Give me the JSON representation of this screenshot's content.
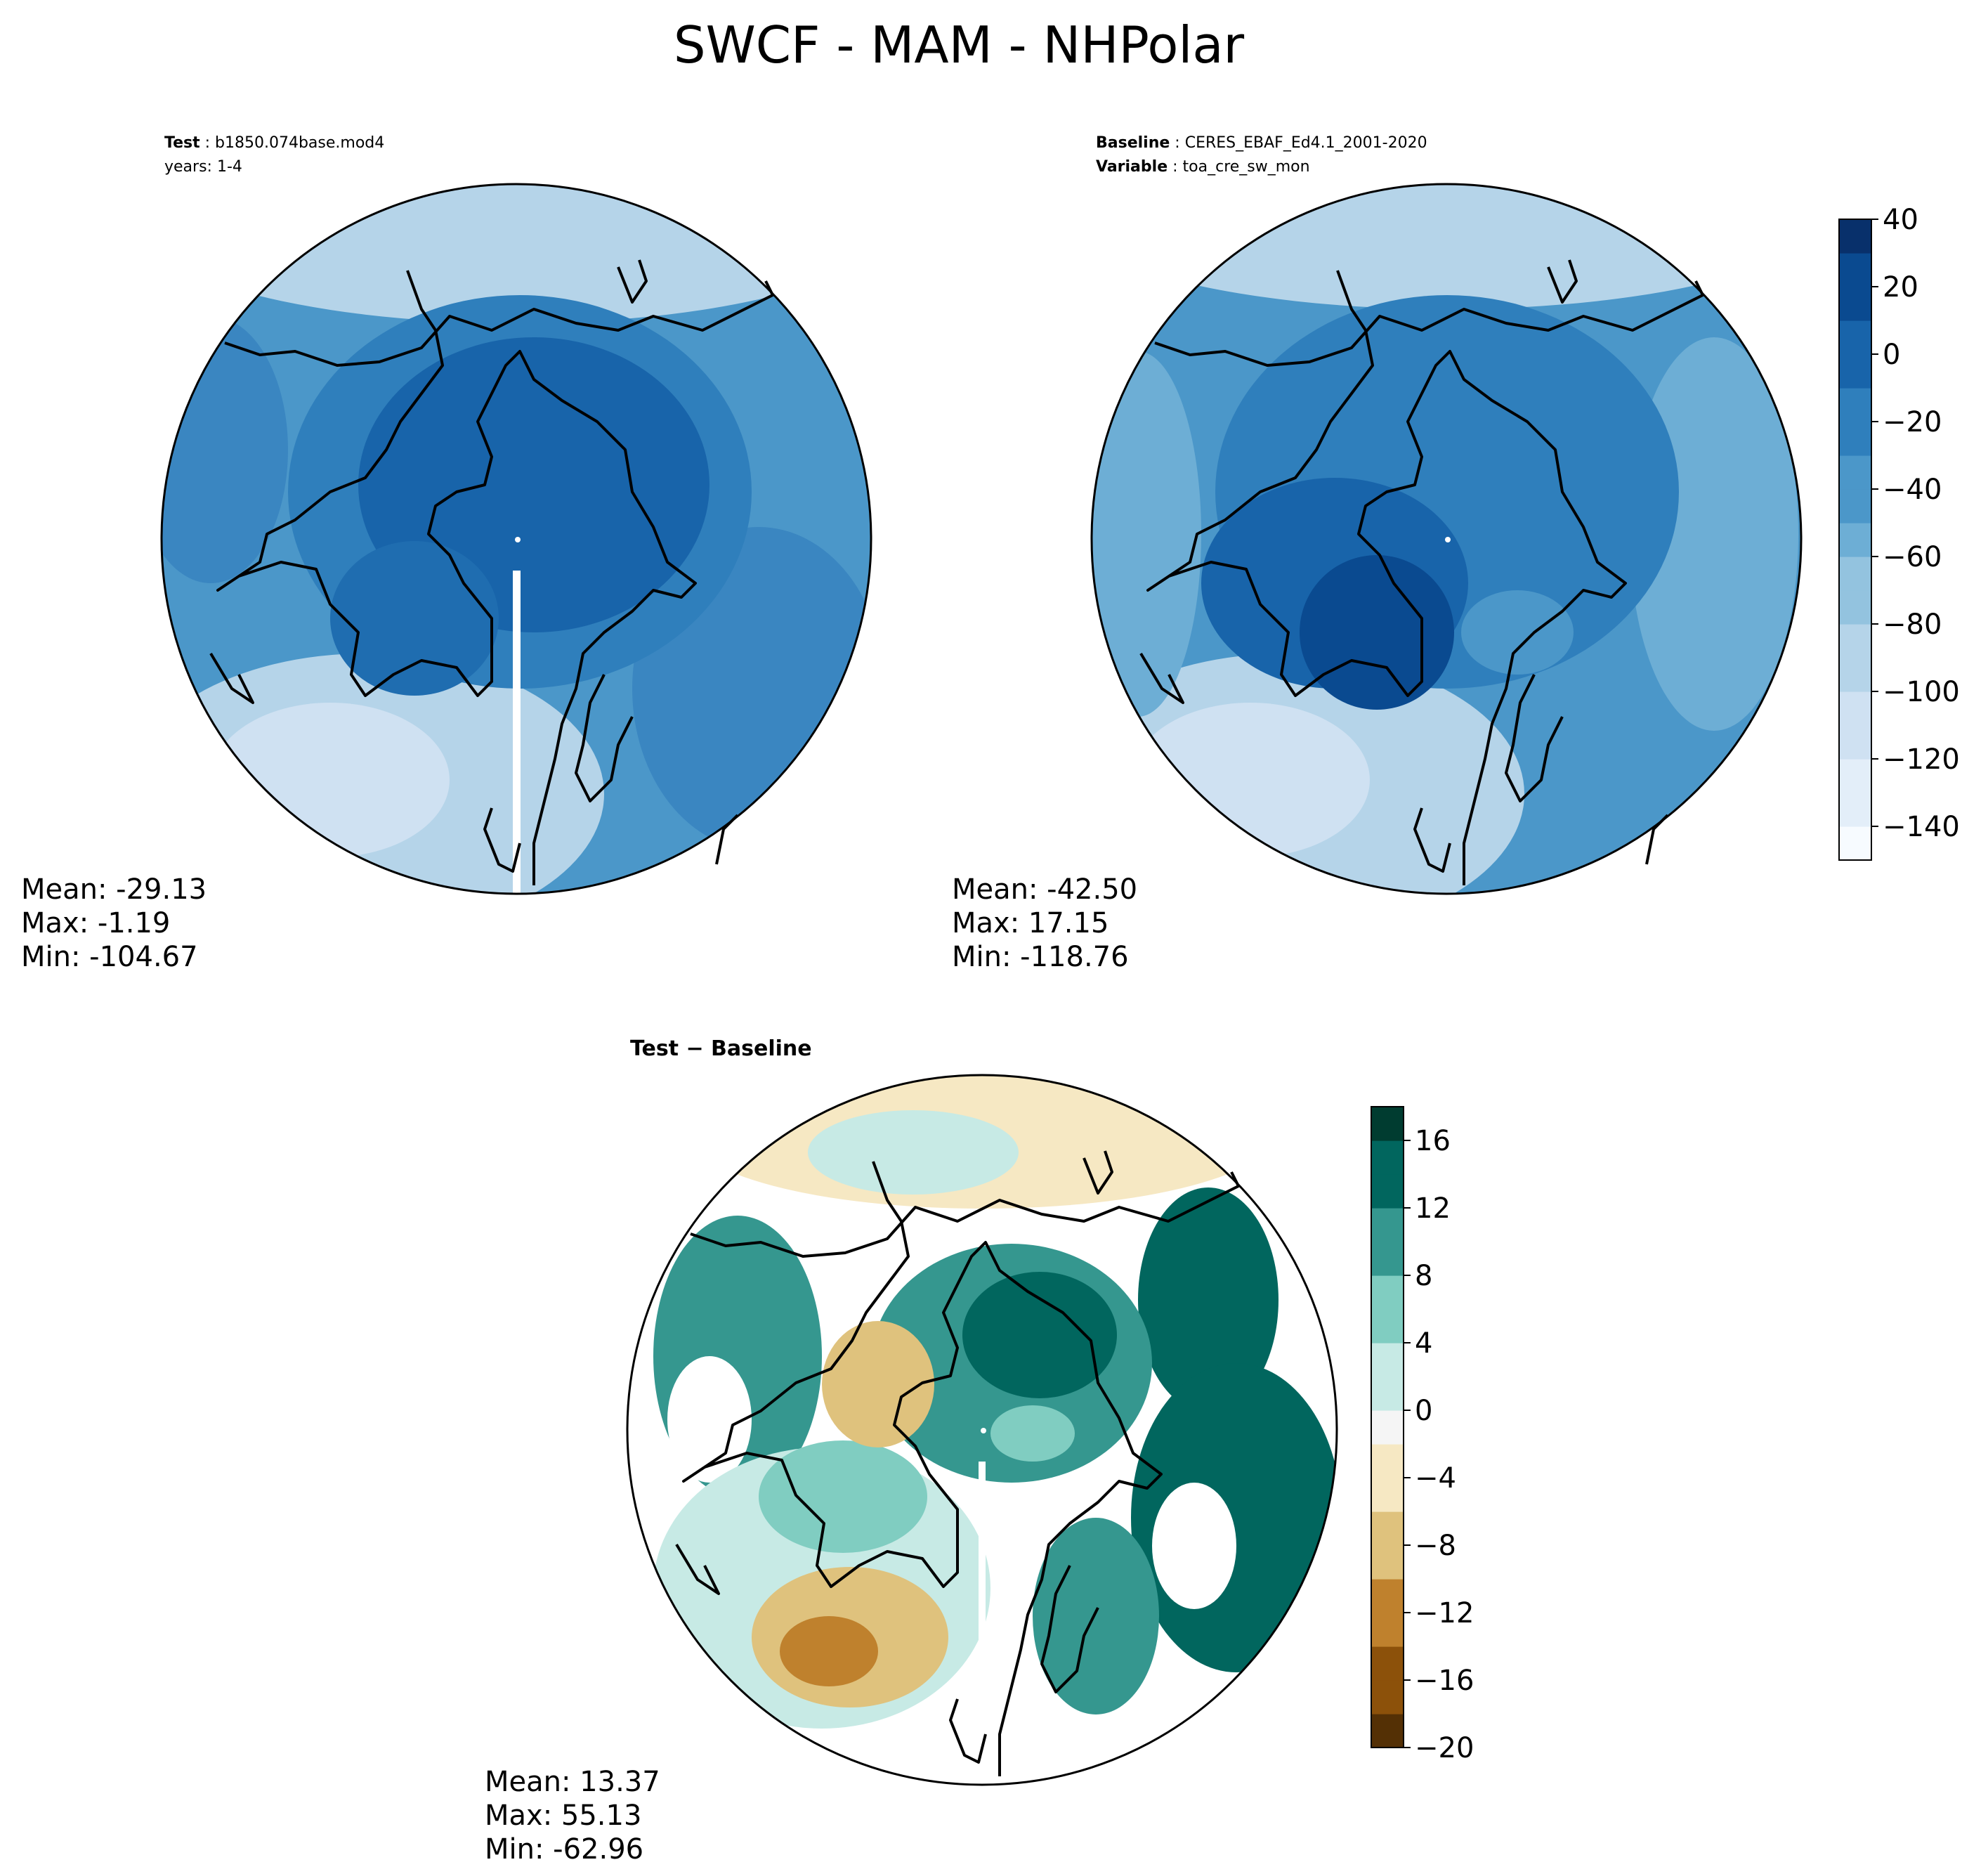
{
  "figure": {
    "title": "SWCF - MAM - NHPolar"
  },
  "panels": {
    "test": {
      "label_key": "Test",
      "label_value": "b1850.074base.mod4",
      "years": "years: 1-4",
      "mean": "Mean: -29.13",
      "max": "Max: -1.19",
      "min": "Min: -104.67"
    },
    "baseline": {
      "label_key": "Baseline",
      "label_value": "CERES_EBAF_Ed4.1_2001-2020",
      "variable_key": "Variable",
      "variable_value": "toa_cre_sw_mon",
      "mean": "Mean: -42.50",
      "max": "Max: 17.15",
      "min": "Min: -118.76"
    },
    "diff": {
      "title": "Test − Baseline",
      "mean": "Mean: 13.37",
      "max": "Max: 55.13",
      "min": "Min: -62.96"
    }
  },
  "colors": {
    "blues": [
      "#f7fbff",
      "#e3eef9",
      "#cfe1f2",
      "#b5d4e9",
      "#93c3df",
      "#6daed5",
      "#4b97c9",
      "#2f7fbc",
      "#1864aa",
      "#0a4a90",
      "#08306b"
    ],
    "brbg": [
      "#543005",
      "#8c510a",
      "#bf812d",
      "#dfc27d",
      "#f6e8c3",
      "#f5f5f5",
      "#c7eae5",
      "#80cdc1",
      "#35978f",
      "#01665e",
      "#003c30"
    ]
  },
  "chart_data": [
    {
      "type": "heatmap",
      "title": "Test",
      "projection": "North Polar Stereographic",
      "colorbar": {
        "colormap": "Blues",
        "range": [
          -150,
          40
        ],
        "ticks": [
          40,
          20,
          0,
          -20,
          -40,
          -60,
          -80,
          -100,
          -120,
          -140
        ]
      },
      "stats": {
        "mean": -29.13,
        "max": -1.19,
        "min": -104.67
      }
    },
    {
      "type": "heatmap",
      "title": "Baseline",
      "projection": "North Polar Stereographic",
      "colorbar": {
        "colormap": "Blues",
        "range": [
          -150,
          40
        ],
        "ticks": [
          40,
          20,
          0,
          -20,
          -40,
          -60,
          -80,
          -100,
          -120,
          -140
        ]
      },
      "stats": {
        "mean": -42.5,
        "max": 17.15,
        "min": -118.76
      }
    },
    {
      "type": "heatmap",
      "title": "Test − Baseline",
      "projection": "North Polar Stereographic",
      "colorbar": {
        "colormap": "BrBG",
        "range": [
          -20,
          18
        ],
        "ticks": [
          16,
          12,
          8,
          4,
          0,
          -4,
          -8,
          -12,
          -16,
          -20
        ]
      },
      "stats": {
        "mean": 13.37,
        "max": 55.13,
        "min": -62.96
      }
    }
  ]
}
